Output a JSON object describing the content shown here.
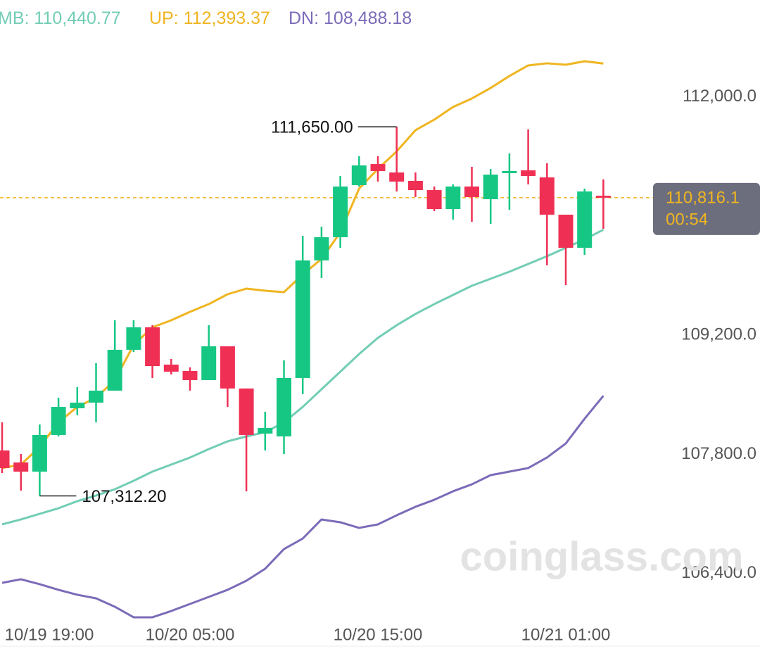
{
  "chart_data": {
    "type": "candlestick",
    "categories": [
      "10/19 19:00",
      null,
      null,
      null,
      null,
      null,
      null,
      null,
      null,
      null,
      "10/20 05:00",
      null,
      null,
      null,
      null,
      null,
      null,
      null,
      null,
      null,
      "10/20 15:00",
      null,
      null,
      null,
      null,
      null,
      null,
      null,
      null,
      null,
      "10/21 01:00",
      null,
      null
    ],
    "open": [
      107846,
      107705,
      107597,
      108028,
      108342,
      108408,
      108549,
      109029,
      109293,
      108855,
      108780,
      108673,
      109070,
      108574,
      108044,
      108011,
      108698,
      110079,
      110352,
      110964,
      111212,
      111113,
      111014,
      110906,
      110683,
      110948,
      110799,
      111105,
      111138,
      111055,
      110617,
      110228,
      110840
    ],
    "high": [
      108176,
      107804,
      108152,
      108466,
      108590,
      108871,
      109376,
      109376,
      109318,
      108921,
      108822,
      109318,
      109070,
      108574,
      108301,
      108904,
      110369,
      110476,
      111072,
      111304,
      111304,
      111650,
      111113,
      110948,
      110973,
      111179,
      111155,
      111337,
      111620,
      111221,
      110617,
      110923,
      111031
    ],
    "low": [
      107581,
      107374,
      107312.2,
      108011,
      108259,
      108176,
      108549,
      109004,
      108698,
      108739,
      108549,
      108673,
      108358,
      107366,
      107846,
      107804,
      108507,
      109872,
      110228,
      110948,
      111006,
      110890,
      110824,
      110658,
      110559,
      110534,
      110509,
      110675,
      110973,
      110021,
      109790,
      110145,
      110451
    ],
    "close": [
      107639,
      107597,
      108028,
      108358,
      108408,
      108549,
      109029,
      109293,
      108838,
      108772,
      108673,
      109070,
      108574,
      108028,
      108110,
      108698,
      110079,
      110352,
      110948,
      111196,
      111130,
      111006,
      110906,
      110683,
      110948,
      110824,
      111088,
      111130,
      111072,
      110617,
      110228,
      110890,
      110816.1
    ],
    "up_color": "#16c784",
    "down_color": "#ef3054",
    "series": [
      {
        "name": "MB",
        "color": "#72cdb5",
        "last_label": "110,440.77",
        "values": [
          106977,
          107035,
          107101,
          107167,
          107250,
          107316,
          107390,
          107490,
          107597,
          107680,
          107763,
          107862,
          107953,
          108011,
          108061,
          108176,
          108358,
          108565,
          108772,
          108979,
          109169,
          109318,
          109450,
          109566,
          109674,
          109781,
          109864,
          109947,
          110038,
          110129,
          110228,
          110327,
          110440.77
        ]
      },
      {
        "name": "UP",
        "color": "#efb521",
        "last_label": "112,393.37",
        "values": [
          107639,
          107680,
          107887,
          108176,
          108358,
          108466,
          108673,
          109086,
          109293,
          109376,
          109475,
          109566,
          109682,
          109748,
          109723,
          109707,
          109914,
          110096,
          110410,
          110923,
          111155,
          111361,
          111610,
          111734,
          111883,
          111982,
          112106,
          112247,
          112371,
          112396,
          112379,
          112420,
          112393.37
        ]
      },
      {
        "name": "DN",
        "color": "#7c6bb8",
        "last_label": "108,488.18",
        "values": [
          106290,
          106332,
          106274,
          106208,
          106150,
          106108,
          106009,
          105885,
          105885,
          105959,
          106042,
          106125,
          106208,
          106315,
          106456,
          106687,
          106811,
          107035,
          107002,
          106936,
          106977,
          107084,
          107184,
          107266,
          107366,
          107448,
          107556,
          107597,
          107639,
          107763,
          107928,
          108218,
          108488.18
        ]
      }
    ],
    "ylim": [
      105860,
      113140
    ],
    "yticks": [
      {
        "value": 112000,
        "label": "112,000.0"
      },
      {
        "value": 109200,
        "label": "109,200.0"
      },
      {
        "value": 107800,
        "label": "107,800.0"
      },
      {
        "value": 106400,
        "label": "106,400.0"
      }
    ],
    "annotations": [
      {
        "value": 111650,
        "label": "111,650.00"
      },
      {
        "value": 107312.2,
        "label": "107,312.20"
      }
    ],
    "last_price": {
      "value": 110816.1,
      "label": "110,816.1",
      "countdown": "00:54",
      "color": "#efb521"
    },
    "watermark": "coinglass.com"
  }
}
